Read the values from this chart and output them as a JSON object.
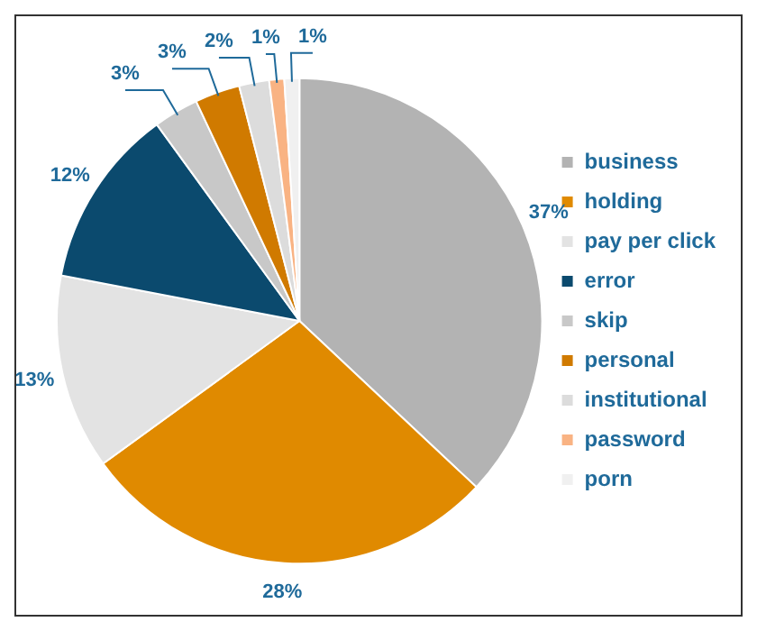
{
  "chart_data": {
    "type": "pie",
    "categories": [
      "business",
      "holding",
      "pay per click",
      "error",
      "skip",
      "personal",
      "institutional",
      "password",
      "porn"
    ],
    "values": [
      37,
      28,
      13,
      12,
      3,
      3,
      2,
      1,
      1
    ],
    "colors": [
      "#b3b3b3",
      "#e08a00",
      "#e3e3e3",
      "#0b4a6e",
      "#c8c8c8",
      "#d07a00",
      "#dcdcdc",
      "#f9b383",
      "#f0f0f0"
    ],
    "value_labels": [
      "37%",
      "28%",
      "13%",
      "12%",
      "3%",
      "3%",
      "2%",
      "1%",
      "1%"
    ],
    "legend": "right"
  }
}
